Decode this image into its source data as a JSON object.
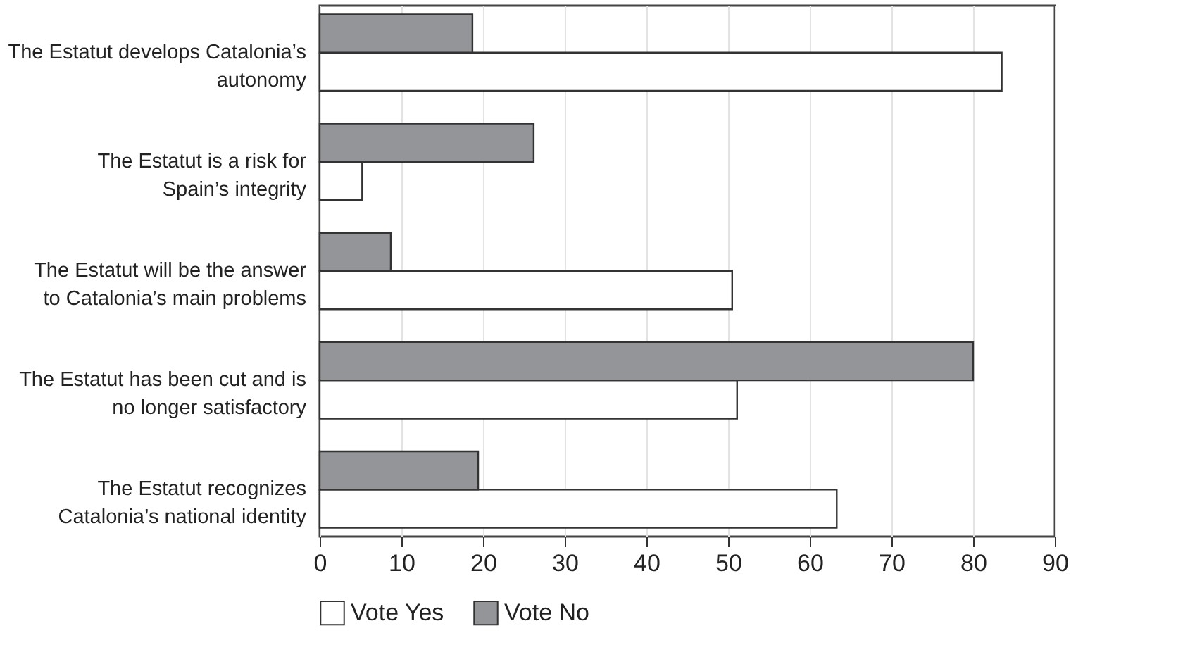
{
  "chart_data": {
    "type": "bar",
    "orientation": "horizontal",
    "categories": [
      "The Estatut develops Catalonia’s autonomy",
      "The Estatut is a risk for Spain’s integrity",
      "The Estatut will be the answer to Catalonia’s main problems",
      "The Estatut has been cut and is no longer satisfactory",
      "The Estatut recognizes Catalonia’s national identity"
    ],
    "series": [
      {
        "name": "Vote Yes",
        "color": "#ffffff",
        "values": [
          83.5,
          5.2,
          50.5,
          51.1,
          63.3
        ]
      },
      {
        "name": "Vote No",
        "color": "#939598",
        "values": [
          18.7,
          26.2,
          8.7,
          80,
          19.4
        ]
      }
    ],
    "xlim": [
      0,
      90
    ],
    "xticks": [
      0,
      10,
      20,
      30,
      40,
      50,
      60,
      70,
      80,
      90
    ],
    "grid": "x",
    "legend": "bottom"
  }
}
